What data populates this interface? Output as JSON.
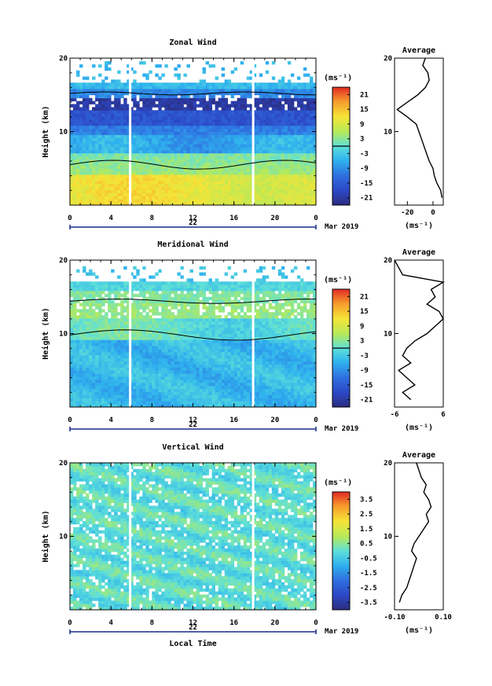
{
  "xlabel": "Local Time",
  "chart_data": [
    {
      "type": "heatmap",
      "title": "Zonal Wind",
      "ylabel": "Height (km)",
      "ylim": [
        0,
        20
      ],
      "yticks": [
        10,
        20
      ],
      "x_tick_labels": [
        "0",
        "4",
        "8",
        "12",
        "16",
        "20",
        "0"
      ],
      "date_day": "22",
      "date_month": "Mar 2019",
      "colorbar": {
        "unit": "(ms⁻¹)",
        "ticks": [
          21,
          15,
          9,
          3,
          -3,
          -9,
          -15,
          -21
        ],
        "range": [
          -24,
          24
        ],
        "zero_line": 0
      },
      "average": {
        "title": "Average",
        "ylim": [
          0,
          20
        ],
        "yticks": [
          10,
          20
        ],
        "xticks": [
          "-20",
          "0"
        ],
        "xunit": "(ms⁻¹)",
        "xlim": [
          -30,
          8
        ],
        "profile_heights": [
          1,
          2,
          3,
          4,
          5,
          6,
          7,
          8,
          9,
          10,
          11,
          12,
          13,
          14,
          15,
          16,
          17,
          18,
          19,
          20
        ],
        "profile_values": [
          7,
          6,
          3,
          1,
          0,
          -3,
          -5,
          -7,
          -9,
          -11,
          -13,
          -20,
          -28,
          -20,
          -12,
          -6,
          -3,
          -4,
          -8,
          -6
        ]
      }
    },
    {
      "type": "heatmap",
      "title": "Meridional Wind",
      "ylabel": "Height (km)",
      "ylim": [
        0,
        20
      ],
      "yticks": [
        10,
        20
      ],
      "x_tick_labels": [
        "0",
        "4",
        "8",
        "12",
        "16",
        "20",
        "0"
      ],
      "date_day": "22",
      "date_month": "Mar 2019",
      "colorbar": {
        "unit": "(ms⁻¹)",
        "ticks": [
          21,
          15,
          9,
          3,
          -3,
          -9,
          -15,
          -21
        ],
        "range": [
          -24,
          24
        ],
        "zero_line": 0
      },
      "average": {
        "title": "Average",
        "ylim": [
          0,
          20
        ],
        "yticks": [
          10,
          20
        ],
        "xticks": [
          "-6",
          "6"
        ],
        "xunit": "(ms⁻¹)",
        "xlim": [
          -6,
          6
        ],
        "profile_heights": [
          1,
          2,
          3,
          4,
          5,
          6,
          7,
          8,
          9,
          10,
          11,
          12,
          13,
          14,
          15,
          16,
          17,
          18,
          19,
          20
        ],
        "profile_values": [
          -2,
          -4,
          -1,
          -3,
          -5,
          -2,
          -4,
          -3,
          -1,
          2,
          4,
          6,
          5,
          2,
          4,
          3,
          6,
          -4,
          -5,
          -6
        ]
      }
    },
    {
      "type": "heatmap",
      "title": "Vertical Wind",
      "ylabel": "Height (km)",
      "ylim": [
        0,
        20
      ],
      "yticks": [
        10,
        20
      ],
      "x_tick_labels": [
        "0",
        "4",
        "8",
        "12",
        "16",
        "20",
        "0"
      ],
      "date_day": "22",
      "date_month": "Mar 2019",
      "colorbar": {
        "unit": "(ms⁻¹)",
        "ticks": [
          3.5,
          2.5,
          1.5,
          0.5,
          -0.5,
          -1.5,
          -2.5,
          -3.5
        ],
        "range": [
          -4,
          4
        ],
        "zero_line": null
      },
      "average": {
        "title": "Average",
        "ylim": [
          0,
          20
        ],
        "yticks": [
          10,
          20
        ],
        "xticks": [
          "-0.10",
          "0.10"
        ],
        "xunit": "(ms⁻¹)",
        "xlim": [
          -0.1,
          0.1
        ],
        "profile_heights": [
          1,
          2,
          3,
          4,
          5,
          6,
          7,
          8,
          9,
          10,
          11,
          12,
          13,
          14,
          15,
          16,
          17,
          18,
          19,
          20
        ],
        "profile_values": [
          -0.08,
          -0.07,
          -0.05,
          -0.04,
          -0.03,
          -0.02,
          -0.01,
          -0.03,
          -0.02,
          0.0,
          0.02,
          0.04,
          0.03,
          0.05,
          0.04,
          0.02,
          0.03,
          0.01,
          0.0,
          -0.01
        ]
      }
    }
  ]
}
